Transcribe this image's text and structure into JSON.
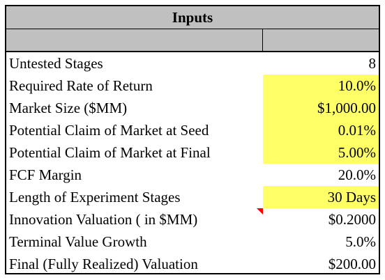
{
  "title": "Inputs",
  "colors": {
    "header_bg": "#c0c0c0",
    "input_highlight": "#ffff66",
    "comment_flag": "#ff0000"
  },
  "rows": [
    {
      "label": "Untested Stages",
      "value": "8",
      "highlight": false
    },
    {
      "label": "Required Rate of Return",
      "value": "10.0%",
      "highlight": true
    },
    {
      "label": "Market Size ($MM)",
      "value": "$1,000.00",
      "highlight": true
    },
    {
      "label": "Potential Claim of Market at Seed",
      "value": "0.01%",
      "highlight": true
    },
    {
      "label": "Potential Claim of Market at Final",
      "value": "5.00%",
      "highlight": true
    },
    {
      "label": "FCF Margin",
      "value": "20.0%",
      "highlight": false
    },
    {
      "label": "Length of Experiment Stages",
      "value": "30 Days",
      "highlight": true
    },
    {
      "label": "Innovation Valuation ( in $MM)",
      "value": "$0.2000",
      "highlight": false,
      "comment_icon": "comment-indicator-icon"
    },
    {
      "label": "Terminal Value Growth",
      "value": "5.0%",
      "highlight": false
    },
    {
      "label": "Final (Fully Realized) Valuation",
      "value": "$200.00",
      "highlight": false
    }
  ]
}
